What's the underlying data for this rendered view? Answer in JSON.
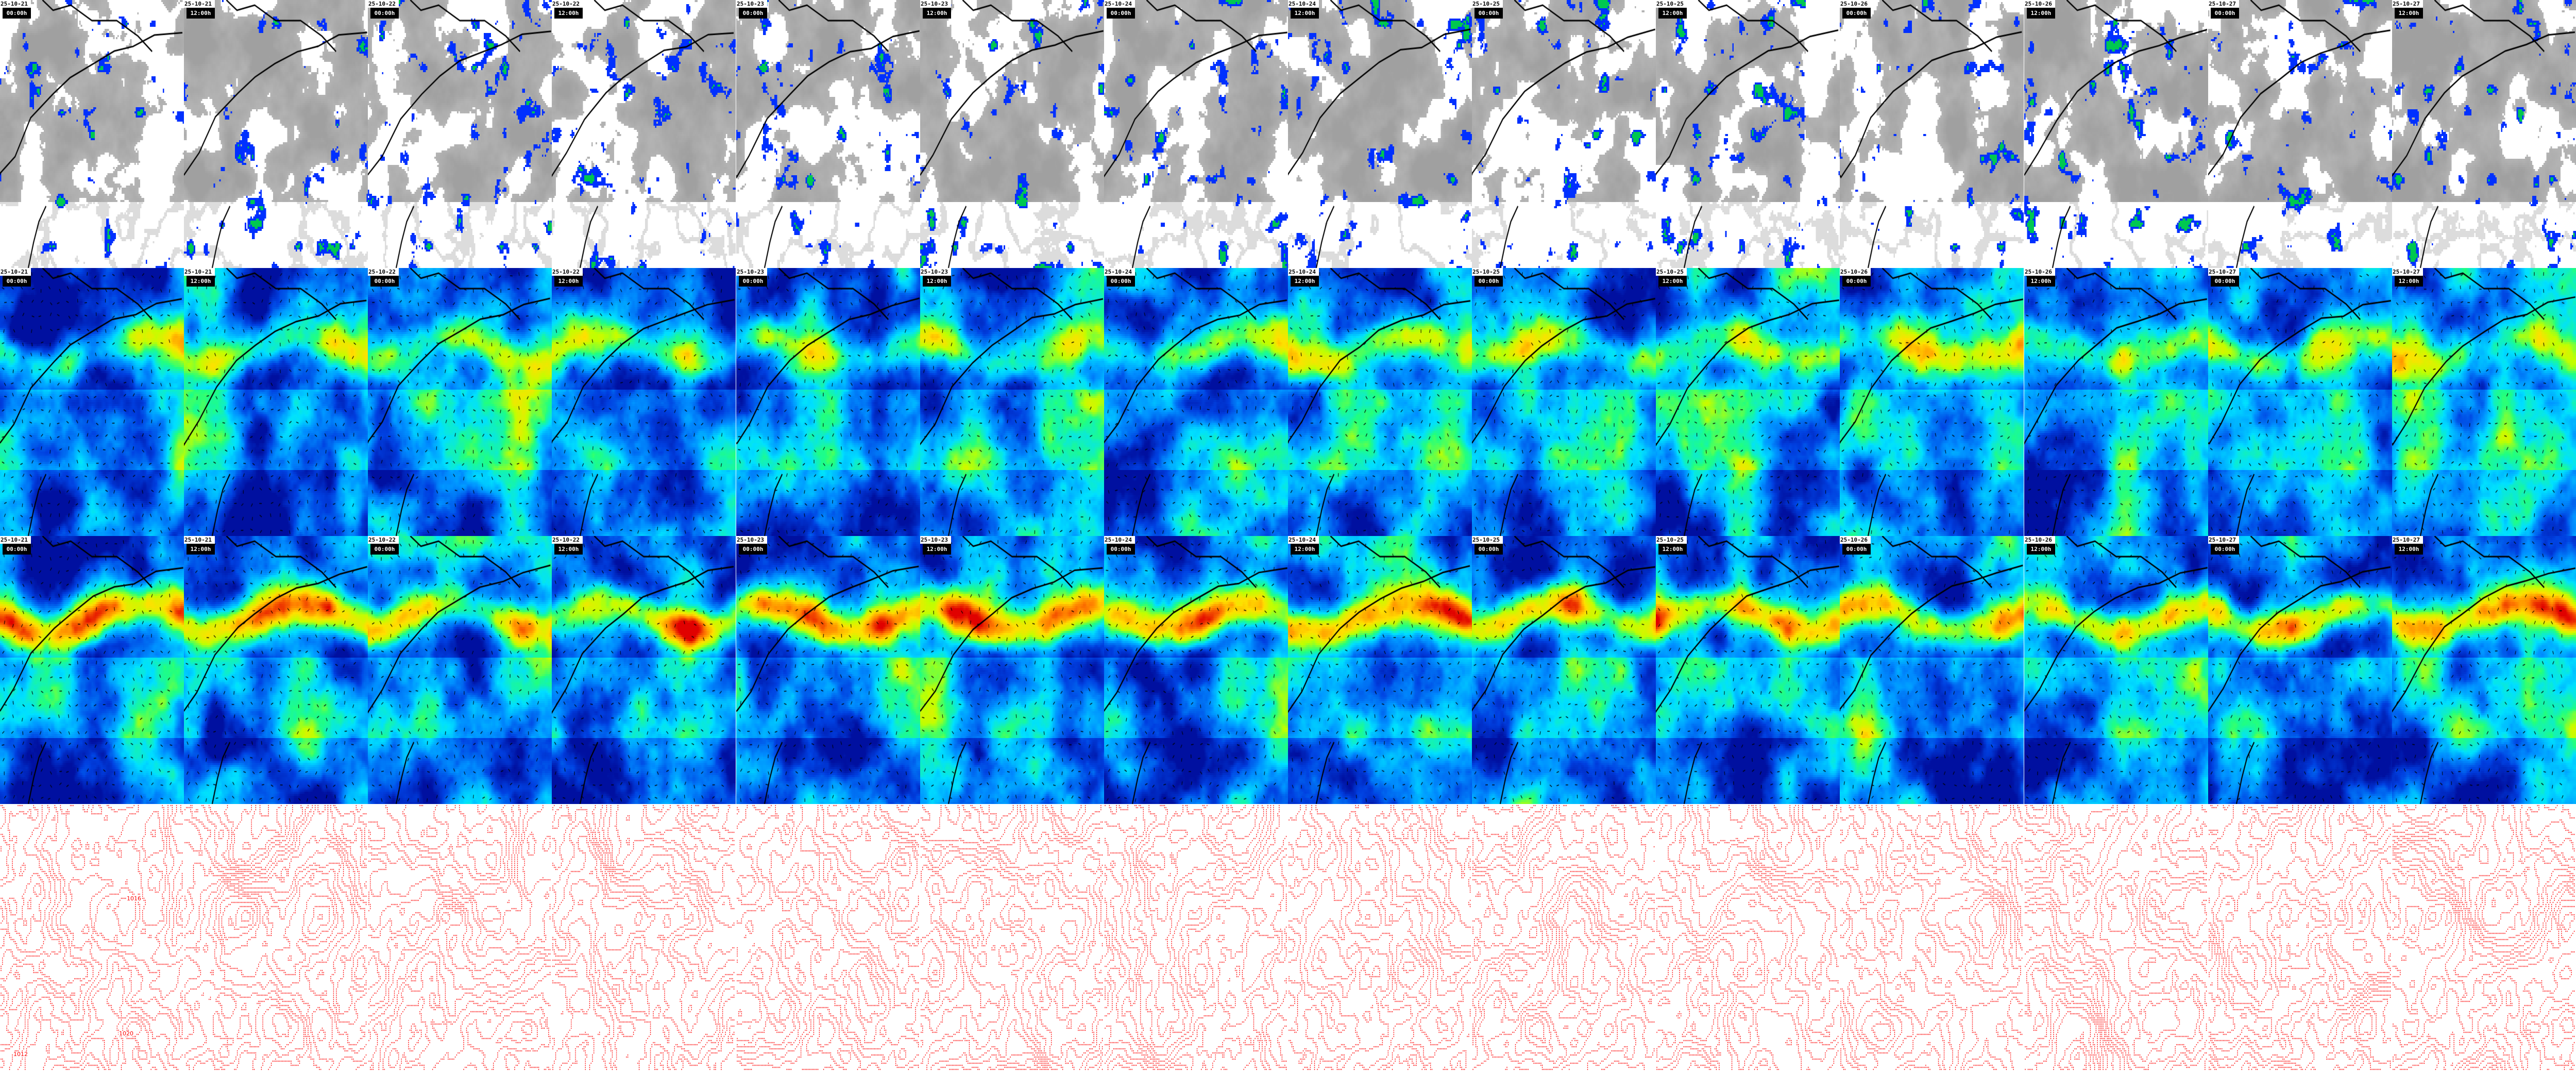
{
  "columns": [
    {
      "date": "25-10-21",
      "time": "00:00h"
    },
    {
      "date": "25-10-21",
      "time": "12:00h"
    },
    {
      "date": "25-10-22",
      "time": "00:00h"
    },
    {
      "date": "25-10-22",
      "time": "12:00h"
    },
    {
      "date": "25-10-23",
      "time": "00:00h"
    },
    {
      "date": "25-10-23",
      "time": "12:00h"
    },
    {
      "date": "25-10-24",
      "time": "00:00h"
    },
    {
      "date": "25-10-24",
      "time": "12:00h"
    },
    {
      "date": "25-10-25",
      "time": "00:00h"
    },
    {
      "date": "25-10-25",
      "time": "12:00h"
    },
    {
      "date": "25-10-26",
      "time": "00:00h"
    },
    {
      "date": "25-10-26",
      "time": "12:00h"
    },
    {
      "date": "25-10-27",
      "time": "00:00h"
    },
    {
      "date": "25-10-27",
      "time": "12:00h"
    }
  ],
  "rows": [
    {
      "kind": "cloud-precip",
      "labeled": true
    },
    {
      "kind": "wind-low",
      "labeled": true
    },
    {
      "kind": "wind-high",
      "labeled": true
    },
    {
      "kind": "isobars",
      "labeled": false
    }
  ],
  "isobar_labels": [
    "992",
    "996",
    "1000",
    "1004",
    "1008",
    "1012",
    "1016",
    "1020",
    "1024"
  ],
  "colors": {
    "cloud_gray": "#a8a8a8",
    "cloud_white": "#ffffff",
    "precip_blue": "#0030ff",
    "wind_scale": [
      "#0010a0",
      "#0040e0",
      "#0090ff",
      "#00e0ff",
      "#20ff80",
      "#c0ff00",
      "#ffe000",
      "#ff8000",
      "#e00000"
    ],
    "isobar": "#ff0000",
    "coastline": "#000000"
  }
}
